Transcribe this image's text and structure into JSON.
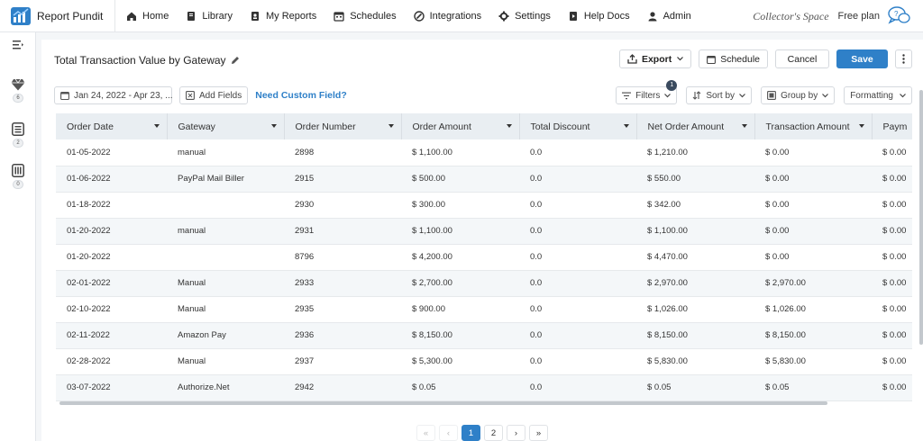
{
  "app": {
    "name": "Report Pundit",
    "store_name": "Collector's Space",
    "plan": "Free plan"
  },
  "nav": [
    {
      "label": "Home",
      "icon": "home-icon"
    },
    {
      "label": "Library",
      "icon": "library-icon"
    },
    {
      "label": "My Reports",
      "icon": "user-reports-icon"
    },
    {
      "label": "Schedules",
      "icon": "calendar-icon"
    },
    {
      "label": "Integrations",
      "icon": "integrations-icon"
    },
    {
      "label": "Settings",
      "icon": "gear-icon"
    },
    {
      "label": "Help Docs",
      "icon": "help-docs-icon"
    },
    {
      "label": "Admin",
      "icon": "admin-icon"
    }
  ],
  "rail": {
    "badges": [
      "6",
      "2",
      "0"
    ]
  },
  "report": {
    "title": "Total Transaction Value by Gateway",
    "export_label": "Export",
    "schedule_label": "Schedule",
    "cancel_label": "Cancel",
    "save_label": "Save"
  },
  "toolbar": {
    "date_range": "Jan 24, 2022 - Apr 23, ...",
    "add_fields": "Add Fields",
    "custom_field": "Need Custom Field?",
    "filters": "Filters",
    "filters_count": "1",
    "sort_by": "Sort by",
    "group_by": "Group by",
    "formatting": "Formatting"
  },
  "table": {
    "columns": [
      "Order Date",
      "Gateway",
      "Order Number",
      "Order Amount",
      "Total Discount",
      "Net Order Amount",
      "Transaction Amount",
      "Paym"
    ],
    "rows": [
      [
        "01-05-2022",
        "manual",
        "2898",
        "$ 1,100.00",
        "0.0",
        "$ 1,210.00",
        "$ 0.00",
        "$ 0.00"
      ],
      [
        "01-06-2022",
        "PayPal Mail Biller",
        "2915",
        "$ 500.00",
        "0.0",
        "$ 550.00",
        "$ 0.00",
        "$ 0.00"
      ],
      [
        "01-18-2022",
        "",
        "2930",
        "$ 300.00",
        "0.0",
        "$ 342.00",
        "$ 0.00",
        "$ 0.00"
      ],
      [
        "01-20-2022",
        "manual",
        "2931",
        "$ 1,100.00",
        "0.0",
        "$ 1,100.00",
        "$ 0.00",
        "$ 0.00"
      ],
      [
        "01-20-2022",
        "",
        "8796",
        "$ 4,200.00",
        "0.0",
        "$ 4,470.00",
        "$ 0.00",
        "$ 0.00"
      ],
      [
        "02-01-2022",
        "Manual",
        "2933",
        "$ 2,700.00",
        "0.0",
        "$ 2,970.00",
        "$ 2,970.00",
        "$ 0.00"
      ],
      [
        "02-10-2022",
        "Manual",
        "2935",
        "$ 900.00",
        "0.0",
        "$ 1,026.00",
        "$ 1,026.00",
        "$ 0.00"
      ],
      [
        "02-11-2022",
        "Amazon Pay",
        "2936",
        "$ 8,150.00",
        "0.0",
        "$ 8,150.00",
        "$ 8,150.00",
        "$ 0.00"
      ],
      [
        "02-28-2022",
        "Manual",
        "2937",
        "$ 5,300.00",
        "0.0",
        "$ 5,830.00",
        "$ 5,830.00",
        "$ 0.00"
      ],
      [
        "03-07-2022",
        "Authorize.Net",
        "2942",
        "$ 0.05",
        "0.0",
        "$ 0.05",
        "$ 0.05",
        "$ 0.00"
      ]
    ]
  },
  "pager": {
    "first": "«",
    "prev": "‹",
    "pages": [
      "1",
      "2"
    ],
    "active_page": "1",
    "next": "›",
    "last": "»"
  },
  "colors": {
    "accent": "#2f80c8",
    "header_bg": "#e9eef2"
  }
}
